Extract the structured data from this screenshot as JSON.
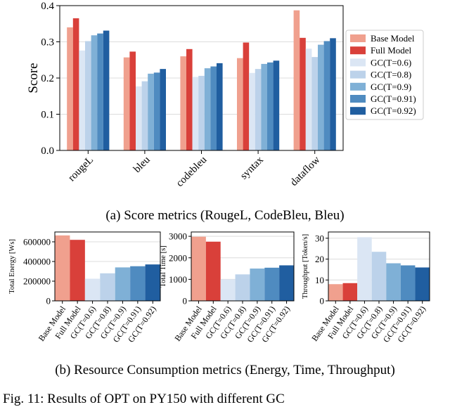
{
  "series_names": [
    "Base Model",
    "Full Model",
    "GC(T=0.6)",
    "GC(T=0.8)",
    "GC(T=0.9)",
    "GC(T=0.91)",
    "GC(T=0.92)"
  ],
  "colors": [
    "#f0a08e",
    "#d9403a",
    "#dbe6f4",
    "#bcd2ea",
    "#7fb0d6",
    "#4f8bc0",
    "#205ea0"
  ],
  "chart_data": [
    {
      "type": "bar",
      "title": "",
      "caption": "(a) Score metrics (RougeL, CodeBleu, Bleu)",
      "ylabel": "Score",
      "xlabel": "",
      "ylim": [
        0,
        0.4
      ],
      "yticks": [
        "0.0",
        "0.1",
        "0.2",
        "0.3",
        "0.4"
      ],
      "categories": [
        "rougeL",
        "bleu",
        "codebleu",
        "syntax",
        "dataflow"
      ],
      "legend": "right",
      "series": [
        {
          "name": "Base Model",
          "values": [
            0.34,
            0.257,
            0.26,
            0.255,
            0.387
          ]
        },
        {
          "name": "Full Model",
          "values": [
            0.365,
            0.273,
            0.28,
            0.298,
            0.311
          ]
        },
        {
          "name": "GC(T=0.6)",
          "values": [
            0.276,
            0.177,
            0.203,
            0.214,
            0.281
          ]
        },
        {
          "name": "GC(T=0.8)",
          "values": [
            0.302,
            0.191,
            0.206,
            0.225,
            0.258
          ]
        },
        {
          "name": "GC(T=0.9)",
          "values": [
            0.318,
            0.212,
            0.227,
            0.239,
            0.292
          ]
        },
        {
          "name": "GC(T=0.91)",
          "values": [
            0.323,
            0.215,
            0.232,
            0.243,
            0.302
          ]
        },
        {
          "name": "GC(T=0.92)",
          "values": [
            0.331,
            0.225,
            0.241,
            0.248,
            0.31
          ]
        }
      ]
    },
    {
      "type": "bar",
      "ylabel": "Total Energy [Ws]",
      "ylim": [
        0,
        700000
      ],
      "yticks": [
        "0",
        "200000",
        "400000",
        "600000"
      ],
      "categories": [
        "Base Model",
        "Full Model",
        "GC(T=0.6)",
        "GC(T=0.8)",
        "GC(T=0.9)",
        "GC(T=0.91)",
        "GC(T=0.92)"
      ],
      "values": [
        665000,
        620000,
        225000,
        280000,
        340000,
        352000,
        370000
      ]
    },
    {
      "type": "bar",
      "ylabel": "Total Time [s]",
      "ylim": [
        0,
        3200
      ],
      "yticks": [
        "0",
        "1000",
        "2000",
        "3000"
      ],
      "categories": [
        "Base Model",
        "Full Model",
        "GC(T=0.6)",
        "GC(T=0.8)",
        "GC(T=0.9)",
        "GC(T=0.91)",
        "GC(T=0.92)"
      ],
      "values": [
        2980,
        2750,
        1000,
        1230,
        1500,
        1540,
        1650
      ]
    },
    {
      "type": "bar",
      "ylabel": "Throughput [Token/s]",
      "ylim": [
        0,
        33
      ],
      "yticks": [
        "0",
        "10",
        "20",
        "30"
      ],
      "categories": [
        "Base Model",
        "Full Model",
        "GC(T=0.6)",
        "GC(T=0.8)",
        "GC(T=0.9)",
        "GC(T=0.91)",
        "GC(T=0.92)"
      ],
      "values": [
        8,
        8.5,
        30.5,
        23.5,
        18,
        17,
        16
      ]
    }
  ],
  "caption_b": "(b) Resource Consumption metrics (Energy, Time, Throughput)",
  "figure_caption": "Fig. 11: Results of OPT on PY150 with different GC"
}
